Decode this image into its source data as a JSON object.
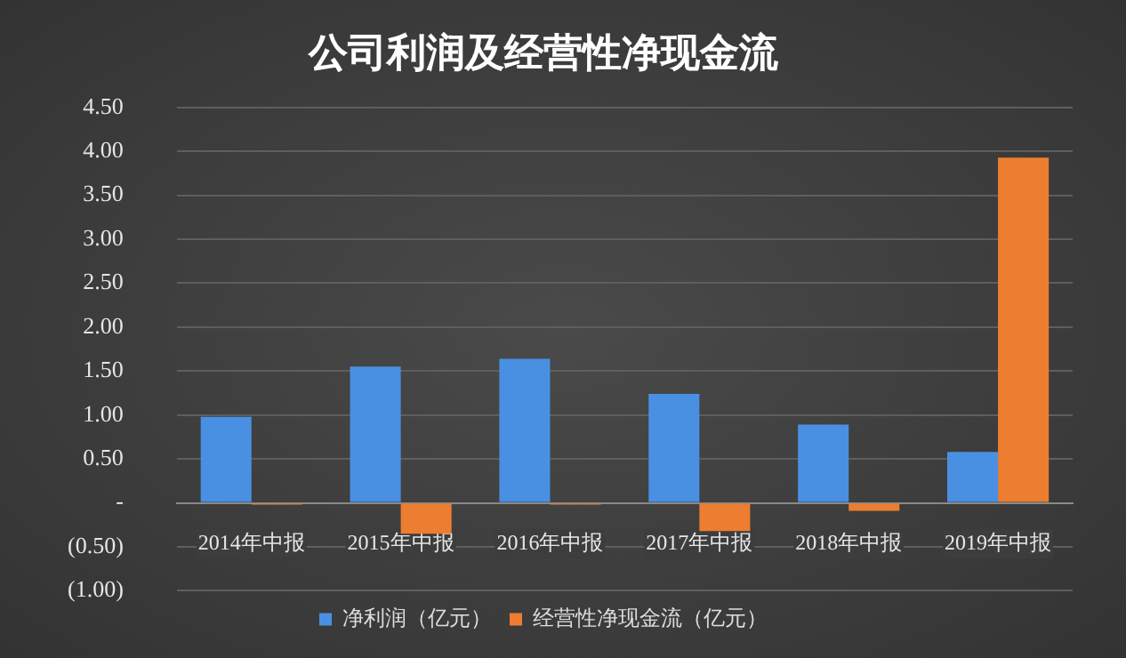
{
  "chart_data": {
    "type": "bar",
    "title": "公司利润及经营性净现金流",
    "categories": [
      "2014年中报",
      "2015年中报",
      "2016年中报",
      "2017年中报",
      "2018年中报",
      "2019年中报"
    ],
    "series": [
      {
        "name": "净利润（亿元）",
        "color": "#4a90e2",
        "values": [
          0.98,
          1.55,
          1.64,
          1.24,
          0.89,
          0.58
        ]
      },
      {
        "name": "经营性净现金流（亿元）",
        "color": "#ed7d31",
        "values": [
          -0.02,
          -0.35,
          -0.02,
          -0.32,
          -0.09,
          3.93
        ]
      }
    ],
    "ylim": [
      -1,
      4.5
    ],
    "yticks": [
      {
        "value": -1,
        "label": "(1.00)"
      },
      {
        "value": -0.5,
        "label": "(0.50)"
      },
      {
        "value": 0,
        "label": "-"
      },
      {
        "value": 0.5,
        "label": "0.50"
      },
      {
        "value": 1,
        "label": "1.00"
      },
      {
        "value": 1.5,
        "label": "1.50"
      },
      {
        "value": 2,
        "label": "2.00"
      },
      {
        "value": 2.5,
        "label": "2.50"
      },
      {
        "value": 3,
        "label": "3.00"
      },
      {
        "value": 3.5,
        "label": "3.50"
      },
      {
        "value": 4,
        "label": "4.00"
      },
      {
        "value": 4.5,
        "label": "4.50"
      }
    ],
    "grid": "y",
    "legend": "bottom"
  }
}
